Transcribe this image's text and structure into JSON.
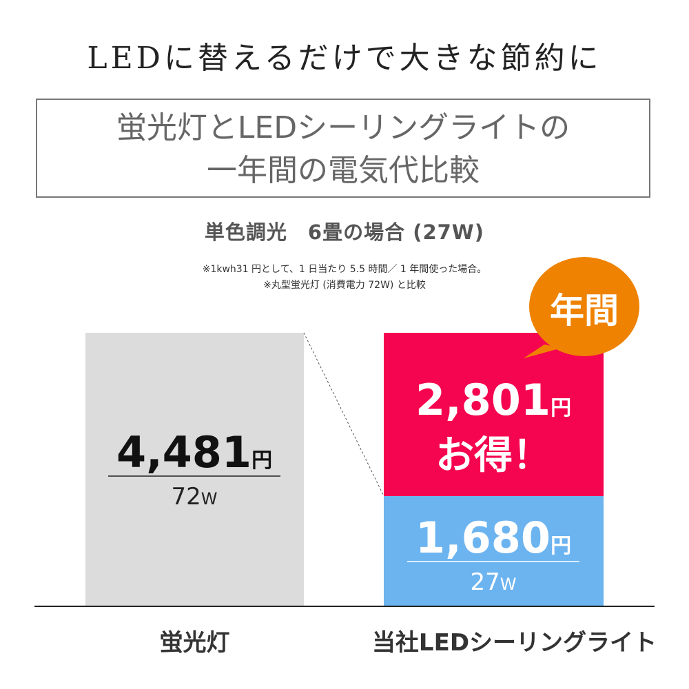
{
  "headline": "LEDに替えるだけで大きな節約に",
  "title_line1": "蛍光灯とLEDシーリングライトの",
  "title_line2": "一年間の電気代比較",
  "subtitle": "単色調光　6畳の場合 (27W)",
  "notes": [
    "※1kwh31 円として、1 日当たり 5.5 時間／ 1 年間使った場合。",
    "※丸型蛍光灯 (消費電力 72W) と比較"
  ],
  "bubble": "年間",
  "colors": {
    "fluorescent": "#dcdcdc",
    "led": "#6cb4f0",
    "saving": "#f5054f",
    "bubble": "#ef8200",
    "text": "#222222"
  },
  "chart_data": {
    "type": "bar",
    "stacked": true,
    "categories": [
      "蛍光灯",
      "当社LEDシーリングライト"
    ],
    "unit": "円",
    "bars": [
      {
        "category": "蛍光灯",
        "value": 4481,
        "value_label": "4,481",
        "watt": "72",
        "watt_unit": "W"
      },
      {
        "category": "当社LEDシーリングライト",
        "value": 1680,
        "value_label": "1,680",
        "watt": "27",
        "watt_unit": "W",
        "saving": 2801,
        "saving_label": "2,801",
        "saving_text": "お得！"
      }
    ]
  }
}
